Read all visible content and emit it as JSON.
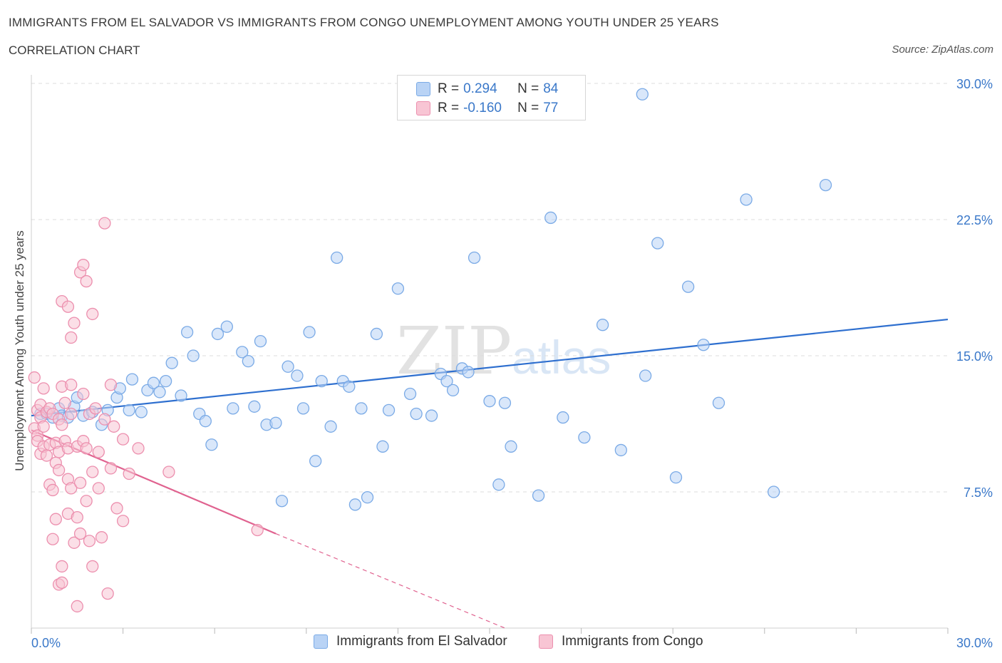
{
  "header": {
    "title": "IMMIGRANTS FROM EL SALVADOR VS IMMIGRANTS FROM CONGO UNEMPLOYMENT AMONG YOUTH UNDER 25 YEARS",
    "subtitle": "CORRELATION CHART",
    "source": "Source: ZipAtlas.com"
  },
  "legend_top": {
    "rows": [
      {
        "r_label": "R =",
        "r_value": "0.294",
        "n_label": "N =",
        "n_value": "84"
      },
      {
        "r_label": "R =",
        "r_value": "-0.160",
        "n_label": "N =",
        "n_value": "77"
      }
    ]
  },
  "legend_bottom": {
    "items": [
      "Immigrants from El Salvador",
      "Immigrants from Congo"
    ]
  },
  "watermark": {
    "zip": "ZIP",
    "atlas": "atlas"
  },
  "colors": {
    "blue_fill": "#b9d3f5",
    "blue_stroke": "#7aaae6",
    "blue_line": "#2e6fcf",
    "pink_fill": "#f8c5d4",
    "pink_stroke": "#ec8fae",
    "pink_line": "#e0628f",
    "axis_label_blue": "#3a78c9"
  },
  "chart_data": {
    "type": "scatter",
    "ylabel": "Unemployment Among Youth under 25 years",
    "xlim": [
      0,
      30
    ],
    "ylim": [
      0,
      30
    ],
    "x_tick_labels": [
      "0.0%",
      "30.0%"
    ],
    "y_tick_labels": [
      "7.5%",
      "15.0%",
      "22.5%",
      "30.0%"
    ],
    "y_ticks": [
      7.5,
      15,
      22.5,
      30
    ],
    "grid": "horizontal dashed",
    "series": [
      {
        "name": "Immigrants from El Salvador",
        "trend": {
          "x0": 0,
          "y0": 11.7,
          "x1": 30,
          "y1": 17.0
        },
        "points": [
          [
            0.3,
            11.8
          ],
          [
            0.5,
            11.8
          ],
          [
            0.7,
            11.6
          ],
          [
            0.9,
            12.1
          ],
          [
            1.0,
            11.7
          ],
          [
            1.2,
            11.6
          ],
          [
            1.4,
            12.2
          ],
          [
            1.5,
            12.7
          ],
          [
            1.7,
            11.7
          ],
          [
            2.0,
            11.9
          ],
          [
            2.3,
            11.2
          ],
          [
            2.5,
            12.0
          ],
          [
            2.8,
            12.7
          ],
          [
            2.9,
            13.2
          ],
          [
            3.2,
            12.0
          ],
          [
            3.3,
            13.7
          ],
          [
            3.6,
            11.9
          ],
          [
            3.8,
            13.1
          ],
          [
            4.0,
            13.5
          ],
          [
            4.2,
            13.0
          ],
          [
            4.4,
            13.6
          ],
          [
            4.6,
            14.6
          ],
          [
            4.9,
            12.8
          ],
          [
            5.1,
            16.3
          ],
          [
            5.3,
            15.0
          ],
          [
            5.5,
            11.8
          ],
          [
            5.7,
            11.4
          ],
          [
            5.9,
            10.1
          ],
          [
            6.1,
            16.2
          ],
          [
            6.4,
            16.6
          ],
          [
            6.6,
            12.1
          ],
          [
            6.9,
            15.2
          ],
          [
            7.1,
            14.7
          ],
          [
            7.3,
            12.2
          ],
          [
            7.5,
            15.8
          ],
          [
            7.7,
            11.2
          ],
          [
            8.0,
            11.3
          ],
          [
            8.2,
            7.0
          ],
          [
            8.4,
            14.4
          ],
          [
            8.7,
            13.9
          ],
          [
            8.9,
            12.1
          ],
          [
            9.1,
            16.3
          ],
          [
            9.3,
            9.2
          ],
          [
            9.5,
            13.6
          ],
          [
            9.8,
            11.1
          ],
          [
            10.0,
            20.4
          ],
          [
            10.2,
            13.6
          ],
          [
            10.4,
            13.3
          ],
          [
            10.6,
            6.8
          ],
          [
            10.8,
            12.1
          ],
          [
            11.0,
            7.2
          ],
          [
            11.3,
            16.2
          ],
          [
            11.5,
            10.0
          ],
          [
            11.7,
            12.0
          ],
          [
            12.0,
            18.7
          ],
          [
            12.4,
            12.9
          ],
          [
            12.6,
            11.8
          ],
          [
            13.1,
            11.7
          ],
          [
            13.4,
            14.0
          ],
          [
            13.6,
            13.6
          ],
          [
            13.8,
            13.1
          ],
          [
            14.1,
            14.3
          ],
          [
            14.3,
            14.1
          ],
          [
            14.5,
            20.4
          ],
          [
            15.0,
            12.5
          ],
          [
            15.3,
            7.9
          ],
          [
            15.5,
            12.4
          ],
          [
            15.7,
            10.0
          ],
          [
            16.6,
            7.3
          ],
          [
            17.0,
            22.6
          ],
          [
            17.4,
            11.6
          ],
          [
            18.1,
            10.5
          ],
          [
            18.7,
            16.7
          ],
          [
            19.3,
            9.8
          ],
          [
            20.0,
            29.4
          ],
          [
            20.1,
            13.9
          ],
          [
            20.5,
            21.2
          ],
          [
            21.1,
            8.3
          ],
          [
            21.5,
            18.8
          ],
          [
            22.0,
            15.6
          ],
          [
            22.5,
            12.4
          ],
          [
            23.4,
            23.6
          ],
          [
            24.3,
            7.5
          ],
          [
            26.0,
            24.4
          ]
        ]
      },
      {
        "name": "Immigrants from Congo",
        "trend": {
          "x0": 0,
          "y0": 10.9,
          "x1": 8.0,
          "y1": 5.2,
          "dash_x1": 15.5,
          "dash_y1": 0
        },
        "points": [
          [
            0.1,
            13.8
          ],
          [
            0.1,
            11.0
          ],
          [
            0.2,
            10.6
          ],
          [
            0.2,
            12.0
          ],
          [
            0.2,
            10.3
          ],
          [
            0.3,
            11.6
          ],
          [
            0.3,
            9.6
          ],
          [
            0.3,
            12.3
          ],
          [
            0.4,
            13.2
          ],
          [
            0.4,
            10.0
          ],
          [
            0.4,
            11.1
          ],
          [
            0.5,
            11.9
          ],
          [
            0.5,
            9.5
          ],
          [
            0.6,
            12.1
          ],
          [
            0.6,
            10.1
          ],
          [
            0.6,
            7.9
          ],
          [
            0.7,
            11.8
          ],
          [
            0.7,
            7.6
          ],
          [
            0.7,
            4.9
          ],
          [
            0.8,
            10.2
          ],
          [
            0.8,
            9.1
          ],
          [
            0.8,
            6.0
          ],
          [
            0.9,
            11.5
          ],
          [
            0.9,
            9.7
          ],
          [
            0.9,
            8.7
          ],
          [
            0.9,
            2.4
          ],
          [
            1.0,
            13.3
          ],
          [
            1.0,
            11.2
          ],
          [
            1.0,
            3.4
          ],
          [
            1.0,
            2.5
          ],
          [
            1.1,
            12.4
          ],
          [
            1.1,
            10.3
          ],
          [
            1.2,
            9.9
          ],
          [
            1.2,
            8.2
          ],
          [
            1.2,
            6.3
          ],
          [
            1.3,
            13.4
          ],
          [
            1.3,
            11.8
          ],
          [
            1.3,
            7.7
          ],
          [
            1.4,
            4.7
          ],
          [
            1.5,
            10.0
          ],
          [
            1.5,
            6.1
          ],
          [
            1.5,
            1.2
          ],
          [
            1.6,
            8.0
          ],
          [
            1.6,
            5.2
          ],
          [
            1.7,
            12.9
          ],
          [
            1.7,
            10.3
          ],
          [
            1.8,
            9.9
          ],
          [
            1.8,
            7.0
          ],
          [
            1.9,
            11.8
          ],
          [
            1.9,
            4.8
          ],
          [
            2.0,
            8.6
          ],
          [
            2.0,
            3.4
          ],
          [
            2.1,
            12.1
          ],
          [
            2.2,
            9.7
          ],
          [
            2.2,
            7.7
          ],
          [
            2.3,
            5.0
          ],
          [
            2.4,
            11.5
          ],
          [
            2.5,
            1.9
          ],
          [
            2.6,
            13.4
          ],
          [
            2.6,
            8.8
          ],
          [
            2.7,
            11.1
          ],
          [
            2.8,
            6.6
          ],
          [
            3.0,
            10.4
          ],
          [
            3.0,
            5.9
          ],
          [
            1.0,
            18.0
          ],
          [
            1.2,
            17.7
          ],
          [
            1.3,
            16.0
          ],
          [
            1.4,
            16.8
          ],
          [
            1.6,
            19.6
          ],
          [
            1.7,
            20.0
          ],
          [
            1.8,
            19.1
          ],
          [
            2.0,
            17.3
          ],
          [
            2.4,
            22.3
          ],
          [
            3.2,
            8.5
          ],
          [
            3.5,
            9.9
          ],
          [
            4.5,
            8.6
          ],
          [
            7.4,
            5.4
          ]
        ]
      }
    ]
  }
}
